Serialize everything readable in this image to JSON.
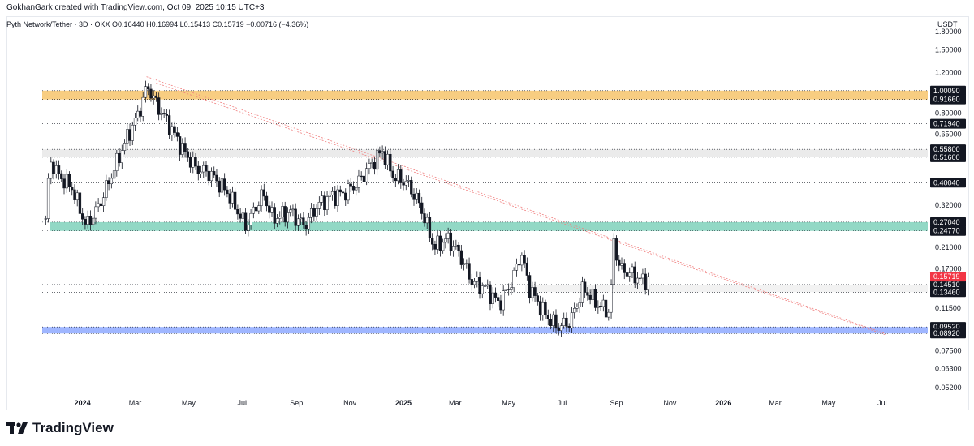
{
  "header": {
    "attribution": "GokhanGark created with TradingView.com, Oct 09, 2025 10:15 UTC+3",
    "symbol_line": "Pyth Network/Tether · 3D · OKX  O0.16440  H0.16994  L0.15413  C0.15719  −0.00716 (−4.36%)"
  },
  "footer": {
    "brand": "TradingView"
  },
  "colors": {
    "bull": "#ffffff",
    "bear": "#131722",
    "wick": "#131722",
    "zone_orange": "#f7c46b",
    "zone_teal": "#7fd1bb",
    "zone_blue": "#8ea9ff",
    "zone_gray": "#e8e8e8",
    "trendline": "#f08080",
    "last_price": "#f23645"
  },
  "chart_data": {
    "type": "candlestick",
    "title": "Pyth Network/Tether · 3D · OKX",
    "y_scale": "log",
    "y_unit": "USDT",
    "ylim": [
      0.048,
      2.1
    ],
    "x_ticks": [
      "2024",
      "Mar",
      "May",
      "Jul",
      "Sep",
      "Nov",
      "2025",
      "Mar",
      "May",
      "Jul",
      "Sep",
      "Nov",
      "2026",
      "Mar",
      "May",
      "Jul"
    ],
    "x_tick_dates": [
      "2024-01-01",
      "2024-03-01",
      "2024-05-01",
      "2024-07-01",
      "2024-09-01",
      "2024-11-01",
      "2025-01-01",
      "2025-03-01",
      "2025-05-01",
      "2025-07-01",
      "2025-09-01",
      "2025-11-01",
      "2026-01-01",
      "2026-03-01",
      "2026-05-01",
      "2026-07-01"
    ],
    "x_range": [
      "2023-11-16",
      "2026-08-22"
    ],
    "y_ticks": [
      "1.80000",
      "1.50000",
      "1.20000",
      "0.80000",
      "0.65000",
      "0.32000",
      "0.21000",
      "0.17000",
      "0.11500",
      "0.07500",
      "0.06300",
      "0.05200"
    ],
    "ohlc_summary": {
      "open": 0.1644,
      "high": 0.16994,
      "low": 0.15413,
      "close": 0.15719,
      "change": -0.00716,
      "change_pct": -4.36
    },
    "anchors": [
      {
        "date": "2023-11-20",
        "price": 0.28
      },
      {
        "date": "2023-11-25",
        "price": 0.5
      },
      {
        "date": "2023-12-05",
        "price": 0.43
      },
      {
        "date": "2023-12-20",
        "price": 0.38
      },
      {
        "date": "2024-01-05",
        "price": 0.26
      },
      {
        "date": "2024-01-20",
        "price": 0.32
      },
      {
        "date": "2024-02-05",
        "price": 0.45
      },
      {
        "date": "2024-02-20",
        "price": 0.62
      },
      {
        "date": "2024-03-05",
        "price": 0.8
      },
      {
        "date": "2024-03-15",
        "price": 1.05
      },
      {
        "date": "2024-03-25",
        "price": 0.88
      },
      {
        "date": "2024-04-10",
        "price": 0.7
      },
      {
        "date": "2024-04-25",
        "price": 0.55
      },
      {
        "date": "2024-05-10",
        "price": 0.46
      },
      {
        "date": "2024-05-25",
        "price": 0.44
      },
      {
        "date": "2024-06-15",
        "price": 0.36
      },
      {
        "date": "2024-07-05",
        "price": 0.26
      },
      {
        "date": "2024-07-25",
        "price": 0.36
      },
      {
        "date": "2024-08-05",
        "price": 0.28
      },
      {
        "date": "2024-08-25",
        "price": 0.3
      },
      {
        "date": "2024-09-10",
        "price": 0.26
      },
      {
        "date": "2024-09-25",
        "price": 0.32
      },
      {
        "date": "2024-10-10",
        "price": 0.35
      },
      {
        "date": "2024-10-25",
        "price": 0.36
      },
      {
        "date": "2024-11-10",
        "price": 0.4
      },
      {
        "date": "2024-11-25",
        "price": 0.48
      },
      {
        "date": "2024-12-08",
        "price": 0.55
      },
      {
        "date": "2024-12-20",
        "price": 0.43
      },
      {
        "date": "2025-01-05",
        "price": 0.4
      },
      {
        "date": "2025-01-20",
        "price": 0.32
      },
      {
        "date": "2025-02-05",
        "price": 0.21
      },
      {
        "date": "2025-02-20",
        "price": 0.23
      },
      {
        "date": "2025-03-05",
        "price": 0.2
      },
      {
        "date": "2025-03-20",
        "price": 0.15
      },
      {
        "date": "2025-04-05",
        "price": 0.14
      },
      {
        "date": "2025-04-20",
        "price": 0.12
      },
      {
        "date": "2025-05-05",
        "price": 0.15
      },
      {
        "date": "2025-05-15",
        "price": 0.2
      },
      {
        "date": "2025-05-25",
        "price": 0.14
      },
      {
        "date": "2025-06-10",
        "price": 0.11
      },
      {
        "date": "2025-06-25",
        "price": 0.095
      },
      {
        "date": "2025-07-10",
        "price": 0.1
      },
      {
        "date": "2025-07-25",
        "price": 0.14
      },
      {
        "date": "2025-08-10",
        "price": 0.12
      },
      {
        "date": "2025-08-25",
        "price": 0.11
      },
      {
        "date": "2025-08-28",
        "price": 0.23
      },
      {
        "date": "2025-09-05",
        "price": 0.17
      },
      {
        "date": "2025-09-20",
        "price": 0.16
      },
      {
        "date": "2025-10-02",
        "price": 0.15
      },
      {
        "date": "2025-10-09",
        "price": 0.157
      }
    ],
    "zones": [
      {
        "name": "orange",
        "top": 1.0009,
        "bottom": 0.9166,
        "color": "#f7c46b",
        "x_start": "2023-11-16"
      },
      {
        "name": "gray",
        "top": 0.558,
        "bottom": 0.516,
        "color": "#e8e8e8",
        "x_start": "2023-11-16"
      },
      {
        "name": "teal",
        "top": 0.2704,
        "bottom": 0.2477,
        "color": "#7fd1bb",
        "x_start": "2023-11-25"
      },
      {
        "name": "gray-low",
        "top": 0.1451,
        "bottom": 0.1346,
        "color": "#f0f0f0",
        "x_start": "2025-05-20"
      },
      {
        "name": "blue",
        "top": 0.0952,
        "bottom": 0.0892,
        "color": "#8ea9ff",
        "x_start": "2023-11-16"
      }
    ],
    "levels": [
      {
        "label": "1.00090",
        "price": 1.0009
      },
      {
        "label": "0.91660",
        "price": 0.9166
      },
      {
        "label": "0.71940",
        "price": 0.7194
      },
      {
        "label": "0.55800",
        "price": 0.558
      },
      {
        "label": "0.51600",
        "price": 0.516
      },
      {
        "label": "0.40040",
        "price": 0.4004
      },
      {
        "label": "0.27040",
        "price": 0.2704
      },
      {
        "label": "0.24770",
        "price": 0.2477
      },
      {
        "label": "0.14510",
        "price": 0.1451
      },
      {
        "label": "0.13460",
        "price": 0.1346
      },
      {
        "label": "0.09520",
        "price": 0.0952
      },
      {
        "label": "0.08920",
        "price": 0.0892
      }
    ],
    "last_price": {
      "label": "0.15719",
      "price": 0.15719
    },
    "trendlines": [
      {
        "from": {
          "date": "2024-03-14",
          "price": 1.15
        },
        "to": {
          "date": "2026-07-05",
          "price": 0.089
        }
      },
      {
        "from": {
          "date": "2024-03-25",
          "price": 1.08
        },
        "to": {
          "date": "2026-07-05",
          "price": 0.088
        }
      }
    ]
  }
}
